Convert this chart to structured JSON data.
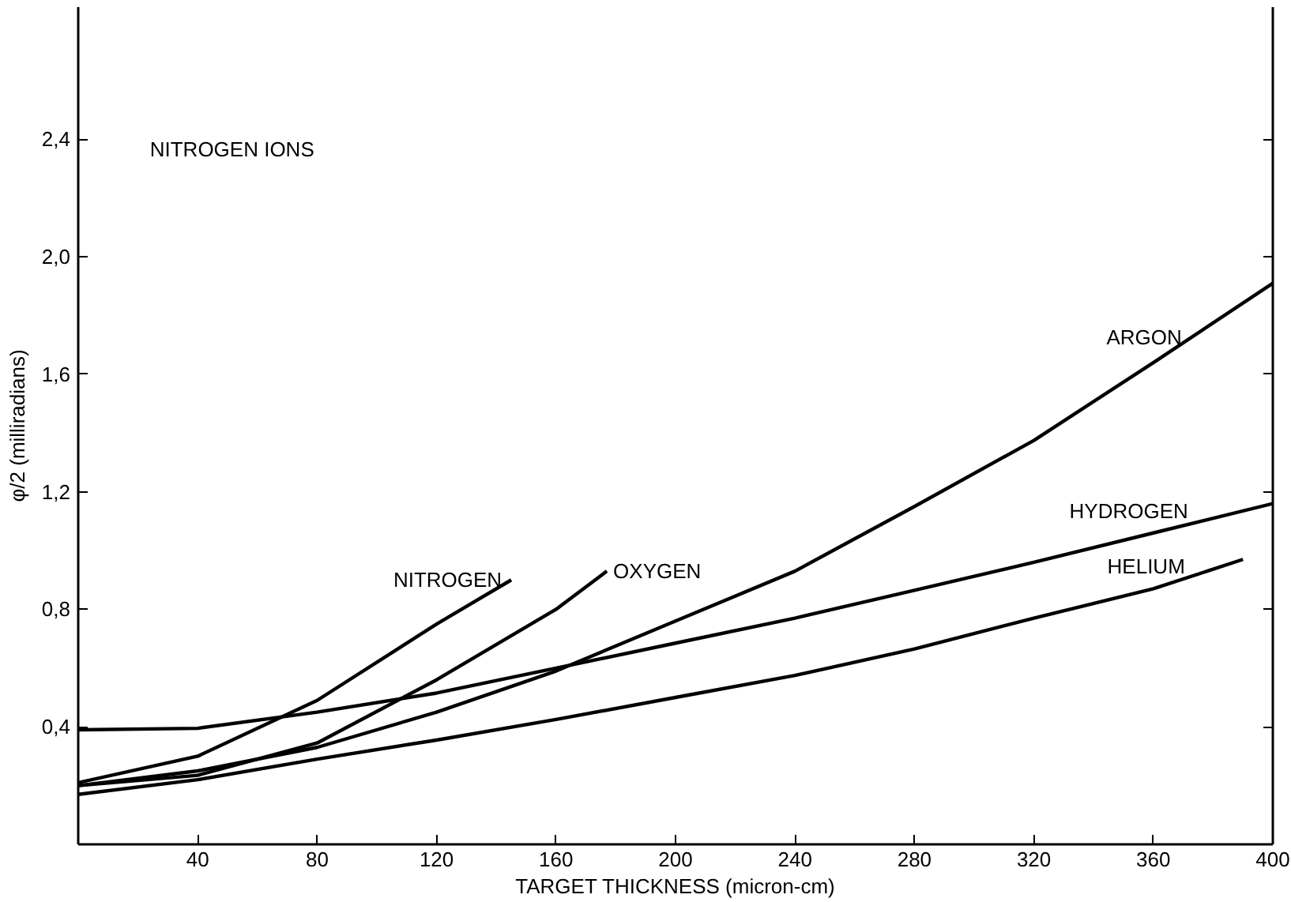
{
  "chart_data": {
    "type": "line",
    "title": "NITROGEN IONS",
    "xlabel": "TARGET THICKNESS (micron-cm)",
    "ylabel": "φ/2 (milliradians)",
    "xlim": [
      0,
      400
    ],
    "ylim": [
      0,
      2.85
    ],
    "xticks": [
      40,
      80,
      120,
      160,
      200,
      240,
      280,
      320,
      360,
      400
    ],
    "yticks": [
      {
        "value": 0.4,
        "label": "0,4"
      },
      {
        "value": 0.8,
        "label": "0,8"
      },
      {
        "value": 1.2,
        "label": "1,2"
      },
      {
        "value": 1.6,
        "label": "1,6"
      },
      {
        "value": 2.0,
        "label": "2,0"
      },
      {
        "value": 2.4,
        "label": "2,4"
      }
    ],
    "grid": false,
    "marker": "none",
    "line_style": "solid",
    "series": [
      {
        "name": "NITROGEN",
        "color": "#000000",
        "x": [
          0,
          40,
          80,
          120,
          145
        ],
        "values": [
          0.21,
          0.3,
          0.49,
          0.75,
          0.9
        ]
      },
      {
        "name": "OXYGEN",
        "color": "#000000",
        "x": [
          0,
          40,
          80,
          120,
          160,
          177
        ],
        "values": [
          0.2,
          0.235,
          0.345,
          0.56,
          0.8,
          0.93
        ]
      },
      {
        "name": "ARGON",
        "color": "#000000",
        "x": [
          0,
          40,
          80,
          120,
          160,
          200,
          240,
          280,
          320,
          360,
          400
        ],
        "values": [
          0.2,
          0.25,
          0.33,
          0.45,
          0.59,
          0.76,
          0.93,
          1.15,
          1.375,
          1.64,
          1.91
        ]
      },
      {
        "name": "HYDROGEN",
        "color": "#000000",
        "x": [
          0,
          40,
          80,
          120,
          160,
          200,
          240,
          280,
          320,
          360,
          400
        ],
        "values": [
          0.39,
          0.395,
          0.45,
          0.515,
          0.6,
          0.685,
          0.77,
          0.865,
          0.96,
          1.06,
          1.16
        ]
      },
      {
        "name": "HELIUM",
        "color": "#000000",
        "x": [
          0,
          40,
          80,
          120,
          160,
          200,
          240,
          280,
          320,
          360,
          390
        ],
        "values": [
          0.17,
          0.22,
          0.29,
          0.355,
          0.425,
          0.5,
          0.575,
          0.665,
          0.77,
          0.87,
          0.97
        ]
      }
    ]
  }
}
